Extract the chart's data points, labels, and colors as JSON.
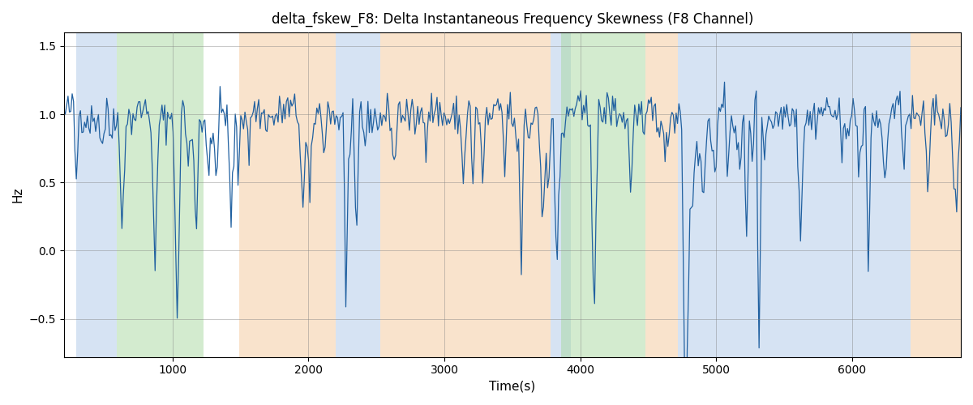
{
  "title": "delta_fskew_F8: Delta Instantaneous Frequency Skewness (F8 Channel)",
  "xlabel": "Time(s)",
  "ylabel": "Hz",
  "xlim": [
    200,
    6800
  ],
  "ylim": [
    -0.78,
    1.6
  ],
  "line_color": "#2060a0",
  "line_width": 0.9,
  "background_regions": [
    {
      "xmin": 290,
      "xmax": 590,
      "color": "#aec8e8",
      "alpha": 0.5
    },
    {
      "xmin": 590,
      "xmax": 1230,
      "color": "#a8d8a0",
      "alpha": 0.5
    },
    {
      "xmin": 1490,
      "xmax": 2200,
      "color": "#f5c89a",
      "alpha": 0.5
    },
    {
      "xmin": 2200,
      "xmax": 2530,
      "color": "#aec8e8",
      "alpha": 0.5
    },
    {
      "xmin": 2530,
      "xmax": 3780,
      "color": "#f5c89a",
      "alpha": 0.5
    },
    {
      "xmin": 3780,
      "xmax": 3800,
      "color": "#aec8e8",
      "alpha": 0.5
    },
    {
      "xmin": 3800,
      "xmax": 3930,
      "color": "#aec8e8",
      "alpha": 0.5
    },
    {
      "xmin": 3860,
      "xmax": 4480,
      "color": "#a8d8a0",
      "alpha": 0.5
    },
    {
      "xmin": 4480,
      "xmax": 4720,
      "color": "#f5c89a",
      "alpha": 0.5
    },
    {
      "xmin": 4720,
      "xmax": 6280,
      "color": "#aec8e8",
      "alpha": 0.5
    },
    {
      "xmin": 6280,
      "xmax": 6430,
      "color": "#aec8e8",
      "alpha": 0.5
    },
    {
      "xmin": 6430,
      "xmax": 6800,
      "color": "#f5c89a",
      "alpha": 0.5
    }
  ],
  "yticks": [
    -0.5,
    0.0,
    0.5,
    1.0,
    1.5
  ],
  "xticks": [
    1000,
    2000,
    3000,
    4000,
    5000,
    6000
  ],
  "seed": 42,
  "n_points": 650
}
